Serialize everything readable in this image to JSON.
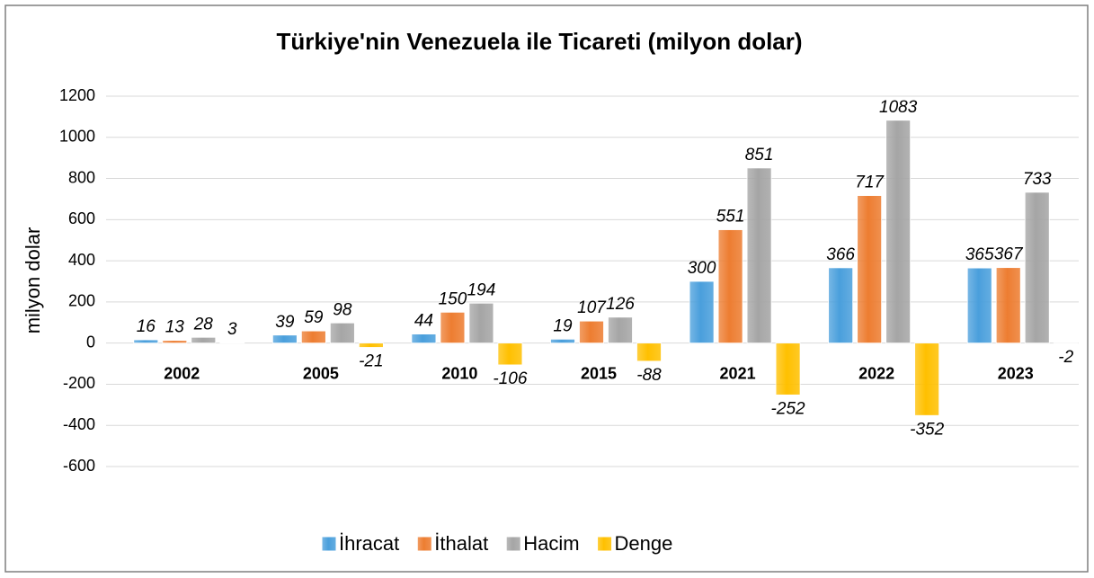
{
  "chart_data": {
    "type": "bar",
    "title": "Türkiye'nin Venezuela ile Ticareti (milyon dolar)",
    "y_label": "milyon dolar",
    "categories": [
      "2002",
      "2005",
      "2010",
      "2015",
      "2021",
      "2022",
      "2023"
    ],
    "series": [
      {
        "name": "İhracat",
        "color": "#4a9fdc",
        "values": [
          16,
          39,
          44,
          19,
          300,
          366,
          365
        ]
      },
      {
        "name": "İthalat",
        "color": "#ed7d31",
        "values": [
          13,
          59,
          150,
          107,
          551,
          717,
          367
        ]
      },
      {
        "name": "Hacim",
        "color": "#a5a5a5",
        "values": [
          28,
          98,
          194,
          126,
          851,
          1083,
          733
        ]
      },
      {
        "name": "Denge",
        "color": "#ffc000",
        "values": [
          3,
          -21,
          -106,
          -88,
          -252,
          -352,
          -2
        ]
      }
    ],
    "ylim": [
      -600,
      1200
    ],
    "yticks": [
      -600,
      -400,
      -200,
      0,
      200,
      400,
      600,
      800,
      1000,
      1200
    ],
    "grid": true,
    "legend": "bottom"
  }
}
